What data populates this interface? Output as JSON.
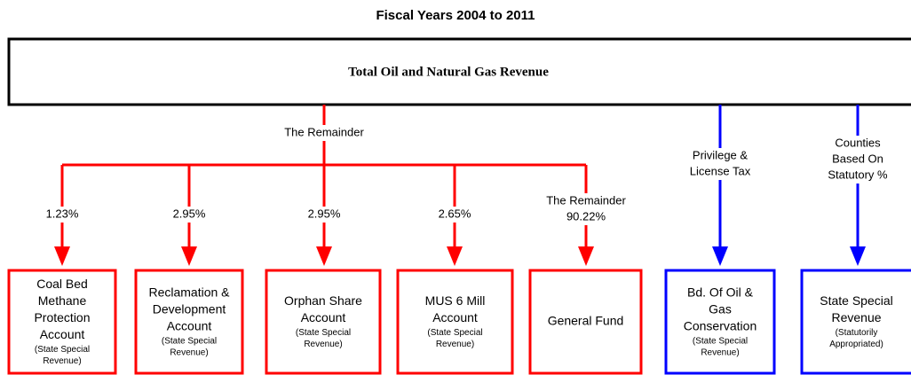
{
  "title": "Fiscal Years 2004 to 2011",
  "source": {
    "label": "Total Oil and Natural Gas Revenue"
  },
  "trunk_label": "The Remainder",
  "nodes": [
    {
      "lines": [
        "Coal Bed",
        "Methane",
        "Protection",
        "Account"
      ],
      "sub": [
        "(State Special",
        "Revenue)"
      ],
      "color": "#ff0000"
    },
    {
      "lines": [
        "Reclamation &",
        "Development",
        "Account"
      ],
      "sub": [
        "(State Special",
        "Revenue)"
      ],
      "color": "#ff0000"
    },
    {
      "lines": [
        "Orphan Share",
        "Account"
      ],
      "sub": [
        "(State Special",
        "Revenue)"
      ],
      "color": "#ff0000"
    },
    {
      "lines": [
        "MUS 6 Mill",
        "Account"
      ],
      "sub": [
        "(State Special",
        "Revenue)"
      ],
      "color": "#ff0000"
    },
    {
      "lines": [
        "General Fund"
      ],
      "sub": [],
      "color": "#ff0000"
    },
    {
      "lines": [
        "Bd. Of Oil &",
        "Gas",
        "Conservation"
      ],
      "sub": [
        "(State Special",
        "Revenue)"
      ],
      "color": "#0000ff"
    },
    {
      "lines": [
        "State Special",
        "Revenue"
      ],
      "sub": [
        "(Statutorily",
        "Appropriated)"
      ],
      "color": "#0000ff"
    }
  ],
  "edges": [
    {
      "label": [
        "1.23%"
      ]
    },
    {
      "label": [
        "2.95%"
      ]
    },
    {
      "label": [
        "2.95%"
      ]
    },
    {
      "label": [
        "2.65%"
      ]
    },
    {
      "label": [
        "The Remainder",
        "90.22%"
      ]
    },
    {
      "label": [
        "Privilege &",
        "License Tax"
      ]
    },
    {
      "label": [
        "Counties",
        "Based On",
        "Statutory %"
      ]
    }
  ]
}
